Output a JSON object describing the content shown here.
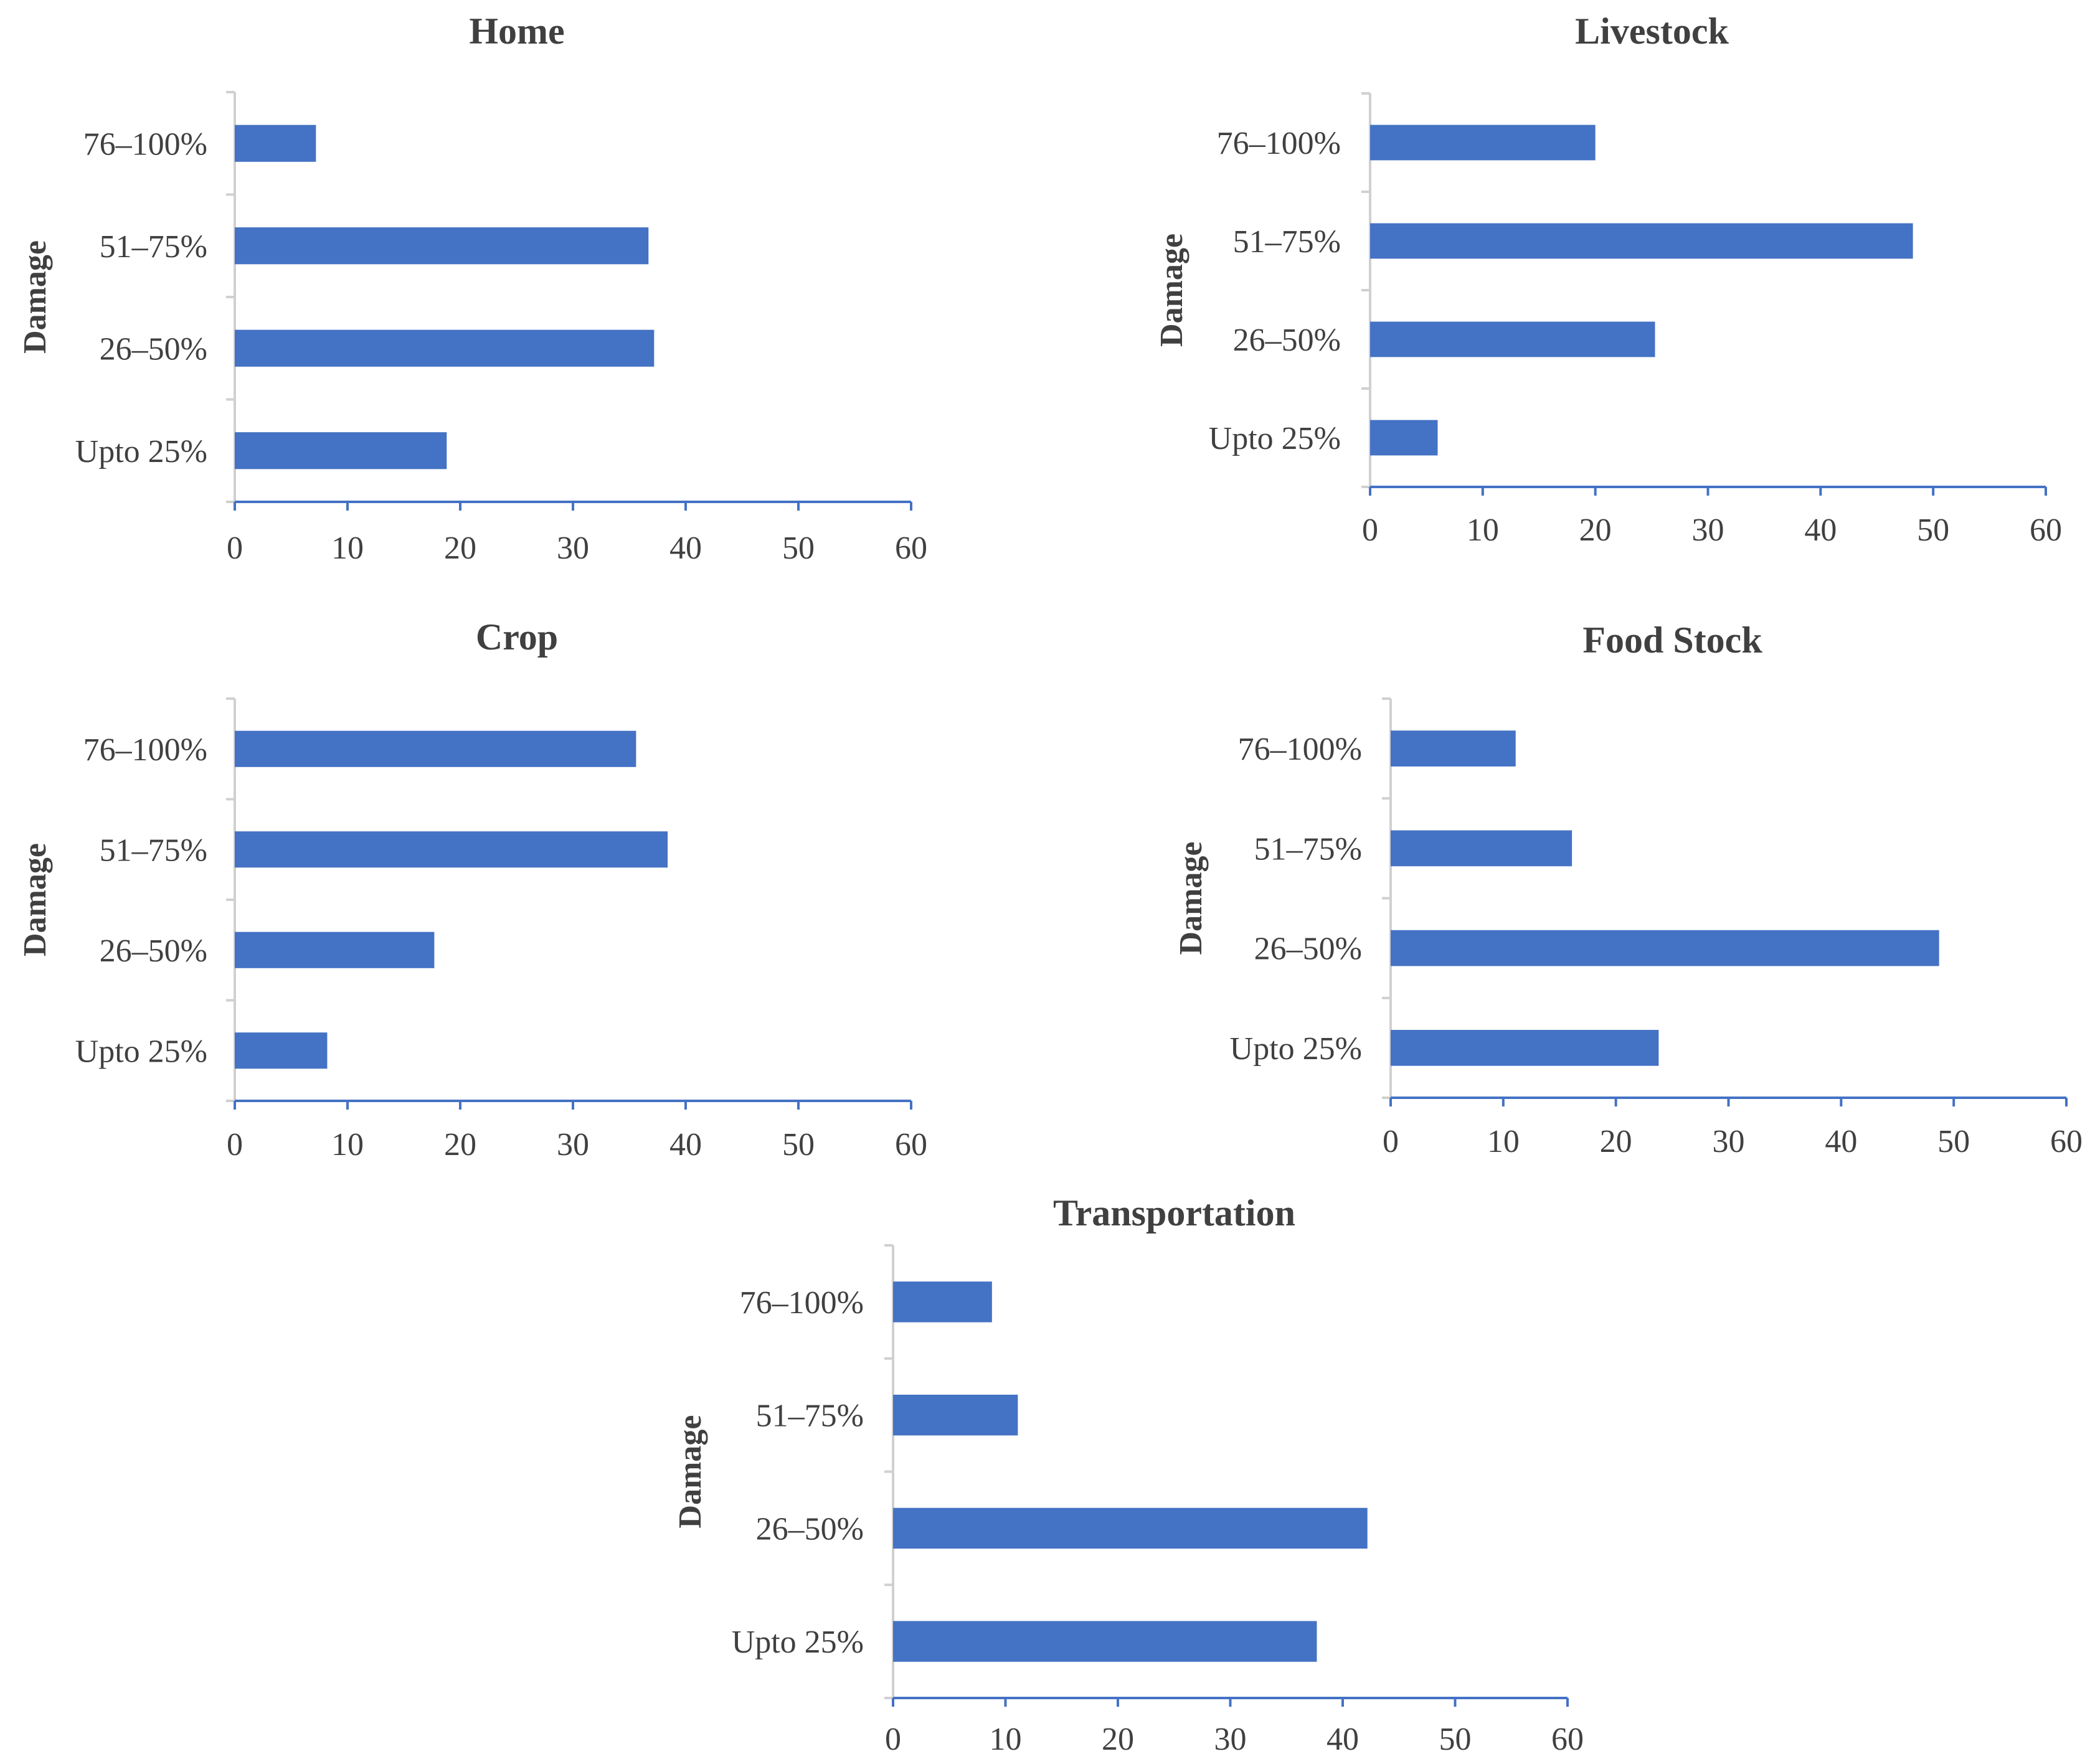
{
  "chart_data": [
    {
      "type": "bar",
      "orientation": "horizontal",
      "title": "Home",
      "ylabel": "Damage",
      "xlabel": "",
      "categories": [
        "Upto 25%",
        "26–50%",
        "51–75%",
        "76–100%"
      ],
      "values": [
        18.8,
        37.2,
        36.7,
        7.2
      ],
      "xlim": [
        0,
        60
      ],
      "xticks": [
        "0",
        "10",
        "20",
        "30",
        "40",
        "50",
        "60"
      ],
      "grid": false,
      "bar_color": "#4472C4"
    },
    {
      "type": "bar",
      "orientation": "horizontal",
      "title": "Livestock",
      "ylabel": "Damage",
      "xlabel": "",
      "categories": [
        "Upto 25%",
        "26–50%",
        "51–75%",
        "76–100%"
      ],
      "values": [
        6.0,
        25.3,
        48.2,
        20.0
      ],
      "xlim": [
        0,
        60
      ],
      "xticks": [
        "0",
        "10",
        "20",
        "30",
        "40",
        "50",
        "60"
      ],
      "grid": false,
      "bar_color": "#4472C4"
    },
    {
      "type": "bar",
      "orientation": "horizontal",
      "title": "Crop",
      "ylabel": "Damage",
      "xlabel": "",
      "categories": [
        "Upto 25%",
        "26–50%",
        "51–75%",
        "76–100%"
      ],
      "values": [
        8.2,
        17.7,
        38.4,
        35.6
      ],
      "xlim": [
        0,
        60
      ],
      "xticks": [
        "0",
        "10",
        "20",
        "30",
        "40",
        "50",
        "60"
      ],
      "grid": false,
      "bar_color": "#4472C4"
    },
    {
      "type": "bar",
      "orientation": "horizontal",
      "title": "Food Stock",
      "ylabel": "Damage",
      "xlabel": "",
      "categories": [
        "Upto 25%",
        "26–50%",
        "51–75%",
        "76–100%"
      ],
      "values": [
        23.8,
        48.7,
        16.1,
        11.1
      ],
      "xlim": [
        0,
        60
      ],
      "xticks": [
        "0",
        "10",
        "20",
        "30",
        "40",
        "50",
        "60"
      ],
      "grid": false,
      "bar_color": "#4472C4"
    },
    {
      "type": "bar",
      "orientation": "horizontal",
      "title": "Transportation",
      "ylabel": "Damage",
      "xlabel": "",
      "categories": [
        "Upto 25%",
        "26–50%",
        "51–75%",
        "76–100%"
      ],
      "values": [
        37.7,
        42.2,
        11.1,
        8.8
      ],
      "xlim": [
        0,
        60
      ],
      "xticks": [
        "0",
        "10",
        "20",
        "30",
        "40",
        "50",
        "60"
      ],
      "grid": false,
      "bar_color": "#4472C4"
    }
  ]
}
